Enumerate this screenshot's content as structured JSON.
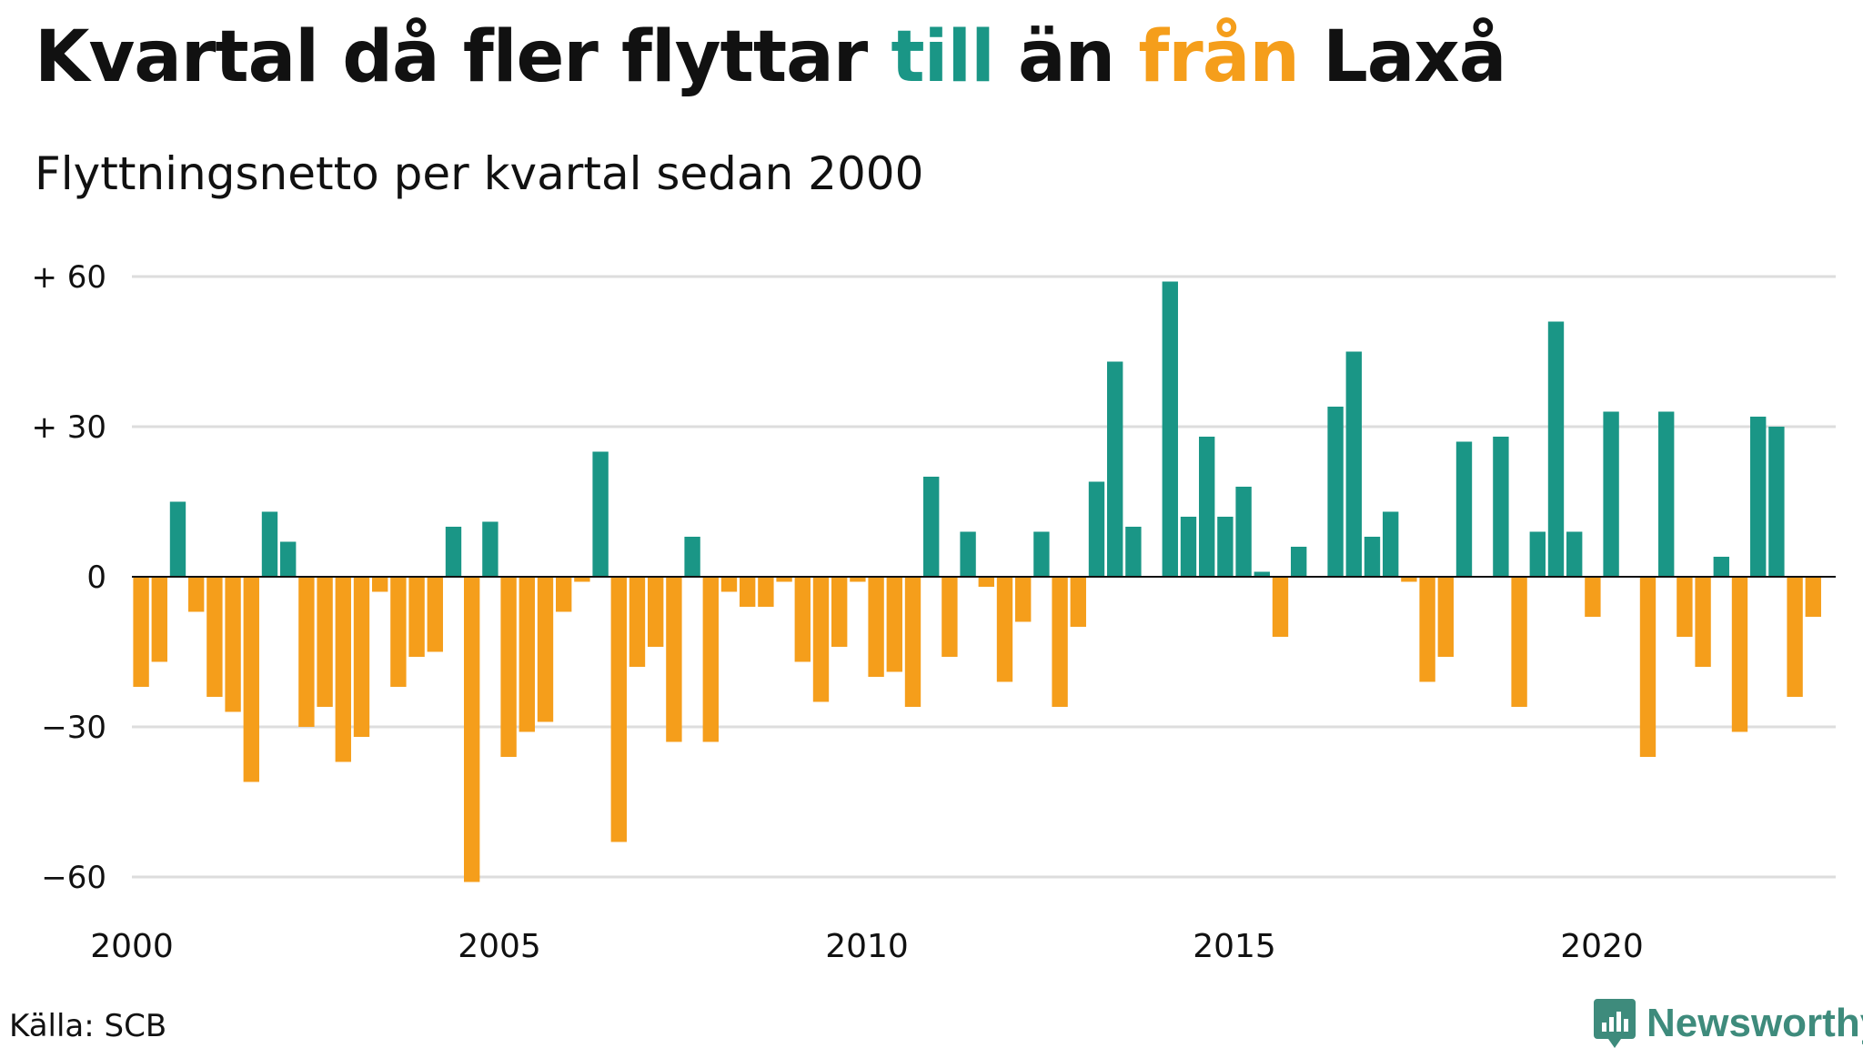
{
  "header": {
    "title_parts": [
      "Kvartal då fler flyttar ",
      "till",
      " än ",
      "från",
      " Laxå"
    ],
    "subtitle": "Flyttningsnetto per kvartal sedan 2000"
  },
  "footer": {
    "source": "Källa: SCB",
    "brand": "Newsworthy"
  },
  "colors": {
    "positive": "#1a9686",
    "negative": "#f59e1b",
    "grid": "#dddddd",
    "text": "#111111",
    "brand": "#3e8b7c"
  },
  "icons": {
    "brand_logo": "newsworthy-logo-icon"
  },
  "chart_data": {
    "type": "bar",
    "title": "Kvartal då fler flyttar till än från Laxå",
    "subtitle": "Flyttningsnetto per kvartal sedan 2000",
    "x_start_year": 2000,
    "periods_per_year": 4,
    "xticks": [
      2000,
      2005,
      2010,
      2015,
      2020
    ],
    "xtick_labels": [
      "2000",
      "2005",
      "2010",
      "2015",
      "2020"
    ],
    "ylim": [
      -65,
      62
    ],
    "yticks": [
      -60,
      -30,
      0,
      30,
      60
    ],
    "ytick_labels": [
      "−60",
      "−30",
      "0",
      "+ 30",
      "+ 60"
    ],
    "grid": true,
    "values": [
      -22,
      -17,
      15,
      -7,
      -24,
      -27,
      -41,
      13,
      7,
      -30,
      -26,
      -37,
      -32,
      -3,
      -22,
      -16,
      -15,
      10,
      -61,
      11,
      -36,
      -31,
      -29,
      -7,
      -1,
      25,
      -53,
      -18,
      -14,
      -33,
      8,
      -33,
      -3,
      -6,
      -6,
      -1,
      -17,
      -25,
      -14,
      -1,
      -20,
      -19,
      -26,
      20,
      -16,
      9,
      -2,
      -21,
      -9,
      9,
      -26,
      -10,
      19,
      43,
      10,
      0,
      59,
      12,
      28,
      12,
      18,
      1,
      -12,
      6,
      0,
      34,
      45,
      8,
      13,
      -1,
      -21,
      -16,
      27,
      0,
      28,
      -26,
      9,
      51,
      9,
      -8,
      33,
      0,
      -36,
      33,
      -12,
      -18,
      4,
      -31,
      32,
      30,
      -24,
      -8
    ]
  }
}
